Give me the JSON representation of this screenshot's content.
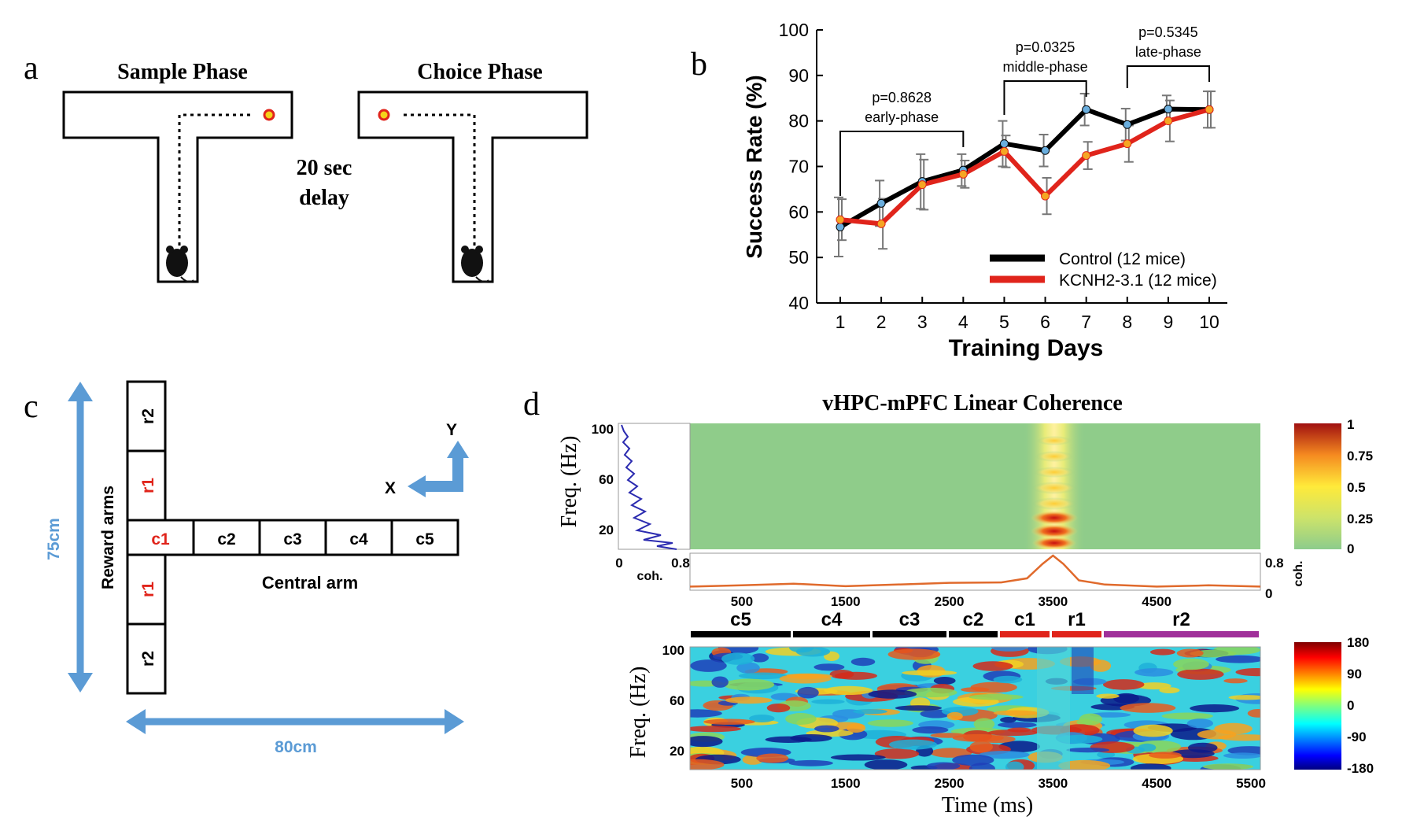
{
  "panel_a": {
    "letter": "a",
    "sample_title": "Sample Phase",
    "choice_title": "Choice Phase",
    "delay_line1": "20 sec",
    "delay_line2": "delay"
  },
  "panel_b": {
    "letter": "b",
    "annotations": [
      {
        "p": "p=0.8628",
        "phase": "early-phase",
        "from_day": 1,
        "to_day": 4
      },
      {
        "p": "p=0.0325",
        "phase": "middle-phase",
        "from_day": 5,
        "to_day": 7
      },
      {
        "p": "p=0.5345",
        "phase": "late-phase",
        "from_day": 8,
        "to_day": 10
      }
    ]
  },
  "panel_c": {
    "letter": "c",
    "reward_cells_top": [
      "r2",
      "r1"
    ],
    "center_cells": [
      "c1",
      "c2",
      "c3",
      "c4",
      "c5"
    ],
    "reward_cells_bottom": [
      "r1",
      "r2"
    ],
    "reward_arms_label": "Reward arms",
    "central_arm_label": "Central arm",
    "height_label": "75cm",
    "width_label": "80cm",
    "axis_x": "X",
    "axis_y": "Y",
    "highlight_color": "#e0241b",
    "arrow_color": "#5b9bd5"
  },
  "panel_d": {
    "letter": "d",
    "title": "vHPC-mPFC Linear Coherence",
    "segments": [
      {
        "label": "c5",
        "color": "#000000"
      },
      {
        "label": "c4",
        "color": "#000000"
      },
      {
        "label": "c3",
        "color": "#000000"
      },
      {
        "label": "c2",
        "color": "#000000"
      },
      {
        "label": "c1",
        "color": "#e0241b"
      },
      {
        "label": "r1",
        "color": "#e0241b"
      },
      {
        "label": "r2",
        "color": "#a0309a"
      }
    ],
    "ylabel": "Freq. (Hz)",
    "coh_label": "coh.",
    "xlabel": "Time (ms)",
    "colorbar_top": [
      "1",
      "0.75",
      "0.5",
      "0.25",
      "0"
    ],
    "colorbar_bottom": [
      "180",
      "90",
      "0",
      "-90",
      "-180"
    ]
  },
  "chart_data": [
    {
      "type": "line",
      "xlabel": "Training Days",
      "ylabel": "Success Rate (%)",
      "x": [
        1,
        2,
        3,
        4,
        5,
        6,
        7,
        8,
        9,
        10
      ],
      "xlim": [
        1,
        10
      ],
      "ylim": [
        40,
        100
      ],
      "yticks": [
        40,
        50,
        60,
        70,
        80,
        90,
        100
      ],
      "legend_position": "bottom-right",
      "series": [
        {
          "name": "Control (12 mice)",
          "color": "#000000",
          "values": [
            56.7,
            61.9,
            66.7,
            69.2,
            75.0,
            73.5,
            82.5,
            79.2,
            82.6,
            82.5
          ],
          "errors": [
            6.5,
            5.0,
            6.0,
            3.5,
            5.0,
            3.5,
            3.5,
            3.5,
            3.0,
            4.0
          ]
        },
        {
          "name": "KCNH2-3.1 (12 mice)",
          "color": "#e0241b",
          "values": [
            58.3,
            57.4,
            66.0,
            68.3,
            73.3,
            63.5,
            72.4,
            75.0,
            80.0,
            82.5
          ],
          "errors": [
            4.5,
            5.5,
            5.5,
            3.0,
            3.5,
            4.0,
            3.0,
            4.0,
            4.5,
            4.0
          ]
        }
      ]
    },
    {
      "type": "heatmap",
      "name": "coherence",
      "xlabel": "",
      "ylabel": "Freq. (Hz)",
      "xticks": [
        500,
        1500,
        2500,
        3500,
        4500
      ],
      "yticks": [
        20,
        60,
        100
      ],
      "xlim": [
        0,
        5500
      ],
      "ylim": [
        5,
        100
      ],
      "clim": [
        0,
        1
      ],
      "peak_time_ms": 3500,
      "coherence_trace": {
        "ylim": [
          0,
          0.8
        ],
        "yticks": [
          "0.8",
          "0"
        ],
        "t": [
          0,
          500,
          1000,
          1500,
          2000,
          2500,
          3000,
          3250,
          3400,
          3500,
          3600,
          3750,
          4000,
          4500,
          5000,
          5500
        ],
        "coh": [
          0.05,
          0.08,
          0.12,
          0.06,
          0.1,
          0.14,
          0.15,
          0.25,
          0.6,
          0.8,
          0.6,
          0.2,
          0.1,
          0.05,
          0.08,
          0.05
        ]
      },
      "freq_profile": {
        "xlim": [
          0,
          0.8
        ],
        "xticks": [
          "0",
          "0.8"
        ]
      }
    },
    {
      "type": "heatmap",
      "name": "phase",
      "xlabel": "Time (ms)",
      "ylabel": "Freq. (Hz)",
      "xticks": [
        500,
        1500,
        2500,
        3500,
        4500,
        5500
      ],
      "yticks": [
        20,
        60,
        100
      ],
      "xlim": [
        0,
        5500
      ],
      "ylim": [
        5,
        100
      ],
      "clim": [
        -180,
        180
      ]
    }
  ]
}
